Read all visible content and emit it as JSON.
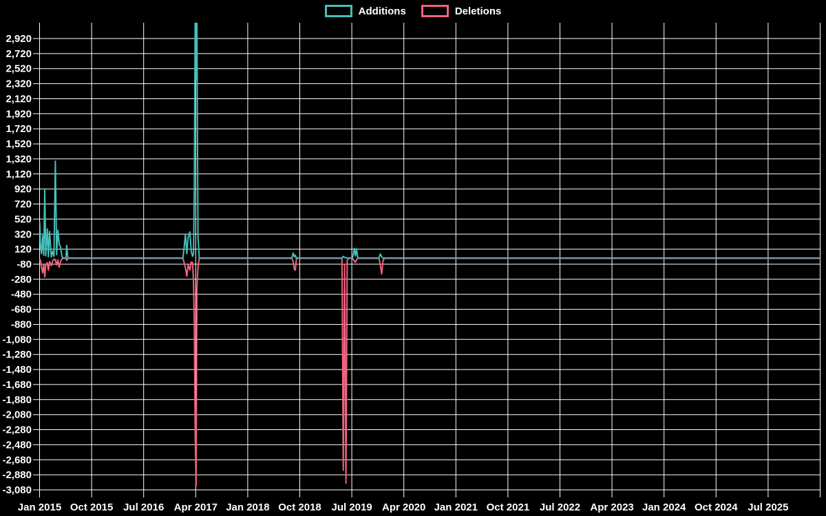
{
  "colors": {
    "background": "#000000",
    "grid": "#ffffff",
    "text": "#ffffff",
    "additions": "#45c0ba",
    "deletions": "#f2637f",
    "zero_overlap": "#7e9dab"
  },
  "legend": {
    "items": [
      {
        "label": "Additions",
        "color": "#45c0ba"
      },
      {
        "label": "Deletions",
        "color": "#f2637f"
      }
    ]
  },
  "chart_data": {
    "type": "line",
    "title": "",
    "legend_position": "top-center",
    "series": [
      {
        "name": "Additions",
        "color": "#45c0ba"
      },
      {
        "name": "Deletions",
        "color": "#f2637f"
      }
    ],
    "x_axis": {
      "grid": true,
      "tick_labels": [
        "Jan 2015",
        "Oct 2015",
        "Jul 2016",
        "Apr 2017",
        "Jan 2018",
        "Oct 2018",
        "Jul 2019",
        "Apr 2020",
        "Jan 2021",
        "Oct 2021",
        "Jul 2022",
        "Apr 2023",
        "Jan 2024",
        "Oct 2024",
        "Jul 2025"
      ]
    },
    "y_axis": {
      "grid": true,
      "min": -3080,
      "max": 2920,
      "step": 200,
      "tick_labels": [
        "2,920",
        "2,720",
        "2,520",
        "2,320",
        "2,120",
        "1,920",
        "1,720",
        "1,520",
        "1,320",
        "1,120",
        "920",
        "720",
        "520",
        "320",
        "120",
        "-80",
        "-280",
        "-480",
        "-680",
        "-880",
        "-1,080",
        "-1,280",
        "-1,480",
        "-1,680",
        "-1,880",
        "-2,080",
        "-2,280",
        "-2,480",
        "-2,680",
        "-2,880",
        "-3,080"
      ]
    },
    "rows_format": [
      "date",
      "additions",
      "deletions"
    ],
    "rows": [
      [
        "2015-01-01",
        490,
        -5
      ],
      [
        "2015-01-06",
        150,
        -40
      ],
      [
        "2015-01-11",
        60,
        -120
      ],
      [
        "2015-01-17",
        300,
        -195
      ],
      [
        "2015-01-23",
        40,
        -80
      ],
      [
        "2015-01-28",
        920,
        -250
      ],
      [
        "2015-02-03",
        30,
        -90
      ],
      [
        "2015-02-11",
        390,
        -60
      ],
      [
        "2015-02-17",
        20,
        -160
      ],
      [
        "2015-02-23",
        355,
        -45
      ],
      [
        "2015-03-02",
        15,
        -100
      ],
      [
        "2015-03-09",
        90,
        -35
      ],
      [
        "2015-03-16",
        25,
        -15
      ],
      [
        "2015-03-23",
        1290,
        -20
      ],
      [
        "2015-03-30",
        45,
        -90
      ],
      [
        "2015-04-06",
        370,
        -25
      ],
      [
        "2015-04-13",
        185,
        -120
      ],
      [
        "2015-04-20",
        150,
        -45
      ],
      [
        "2015-04-27",
        25,
        -10
      ],
      [
        "2015-05-04",
        0,
        0
      ],
      [
        "2015-05-18",
        0,
        0
      ],
      [
        "2015-05-22",
        170,
        -30
      ],
      [
        "2015-05-28",
        0,
        0
      ],
      [
        "2017-01-25",
        0,
        0
      ],
      [
        "2017-02-01",
        140,
        -60
      ],
      [
        "2017-02-08",
        320,
        -130
      ],
      [
        "2017-02-15",
        60,
        -240
      ],
      [
        "2017-02-22",
        280,
        -90
      ],
      [
        "2017-03-01",
        350,
        -160
      ],
      [
        "2017-03-08",
        90,
        -50
      ],
      [
        "2017-03-15",
        25,
        -60
      ],
      [
        "2017-03-20",
        60,
        -300
      ],
      [
        "2017-03-24",
        850,
        -840
      ],
      [
        "2017-03-29",
        3300,
        -2350
      ],
      [
        "2017-04-03",
        2380,
        -3030
      ],
      [
        "2017-04-07",
        3300,
        -400
      ],
      [
        "2017-04-13",
        300,
        -120
      ],
      [
        "2017-04-20",
        0,
        0
      ],
      [
        "2018-08-20",
        0,
        0
      ],
      [
        "2018-08-27",
        70,
        -45
      ],
      [
        "2018-09-03",
        15,
        -150
      ],
      [
        "2018-09-08",
        40,
        -160
      ],
      [
        "2018-09-14",
        0,
        0
      ],
      [
        "2019-05-10",
        0,
        0
      ],
      [
        "2019-05-17",
        25,
        -2820
      ],
      [
        "2019-05-24",
        5,
        -80
      ],
      [
        "2019-05-31",
        10,
        -2990
      ],
      [
        "2019-06-07",
        0,
        -30
      ],
      [
        "2019-06-14",
        0,
        0
      ],
      [
        "2019-07-04",
        0,
        0
      ],
      [
        "2019-07-08",
        40,
        -15
      ],
      [
        "2019-07-14",
        130,
        -35
      ],
      [
        "2019-07-20",
        30,
        -55
      ],
      [
        "2019-07-26",
        125,
        -20
      ],
      [
        "2019-08-02",
        0,
        0
      ],
      [
        "2019-11-22",
        0,
        0
      ],
      [
        "2019-11-29",
        55,
        -80
      ],
      [
        "2019-12-06",
        20,
        -210
      ],
      [
        "2019-12-13",
        0,
        -40
      ],
      [
        "2019-12-20",
        0,
        0
      ],
      [
        "2026-04-01",
        0,
        0
      ]
    ]
  }
}
